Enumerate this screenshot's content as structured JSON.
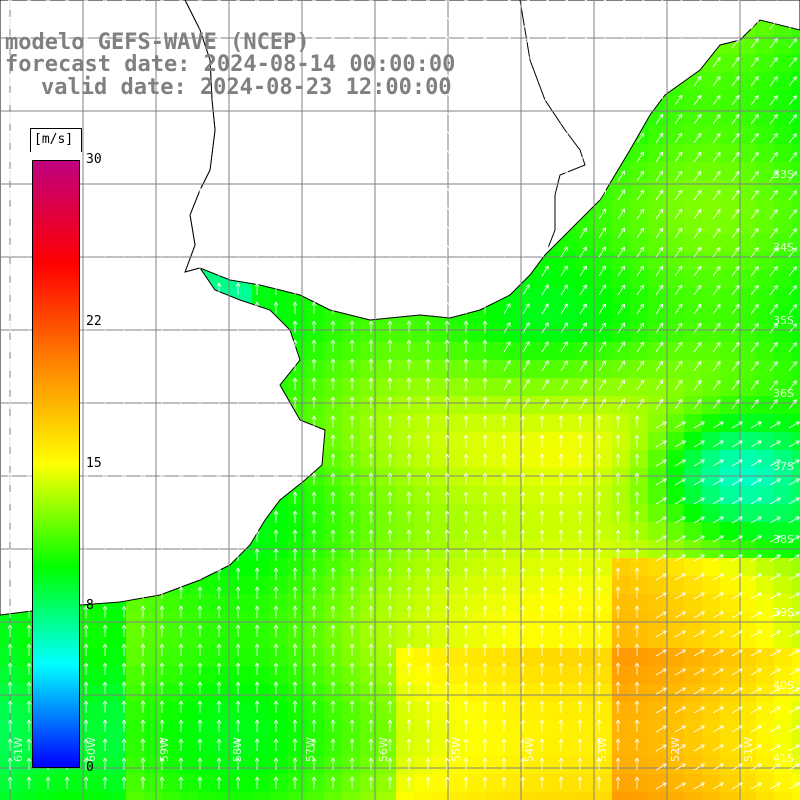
{
  "title": {
    "line1": "modelo GEFS-WAVE (NCEP)",
    "line2": "forecast date: 2024-08-14 00:00:00",
    "line3": "valid date: 2024-08-23 12:00:00"
  },
  "colorbar": {
    "unit": "[m/s]",
    "min": 0,
    "max": 30,
    "ticks": [
      {
        "value": 30,
        "label": "30"
      },
      {
        "value": 22,
        "label": "22"
      },
      {
        "value": 15,
        "label": "15"
      },
      {
        "value": 8,
        "label": "8"
      },
      {
        "value": 0,
        "label": "0"
      }
    ],
    "colors": [
      "#0000ff",
      "#00ffff",
      "#00ff00",
      "#ffff00",
      "#ff8000",
      "#ff0000",
      "#c00080"
    ]
  },
  "map": {
    "lat_labels": [
      "33S",
      "34S",
      "35S",
      "36S",
      "37S",
      "38S",
      "39S",
      "40S",
      "41S"
    ],
    "lon_labels": [
      "61W",
      "60W",
      "59W",
      "58W",
      "57W",
      "56W",
      "55W",
      "54W",
      "53W",
      "52W",
      "51W"
    ],
    "land_color": "#ffffff",
    "grid_color": "#808080",
    "arrow_color": "#ffffff"
  }
}
